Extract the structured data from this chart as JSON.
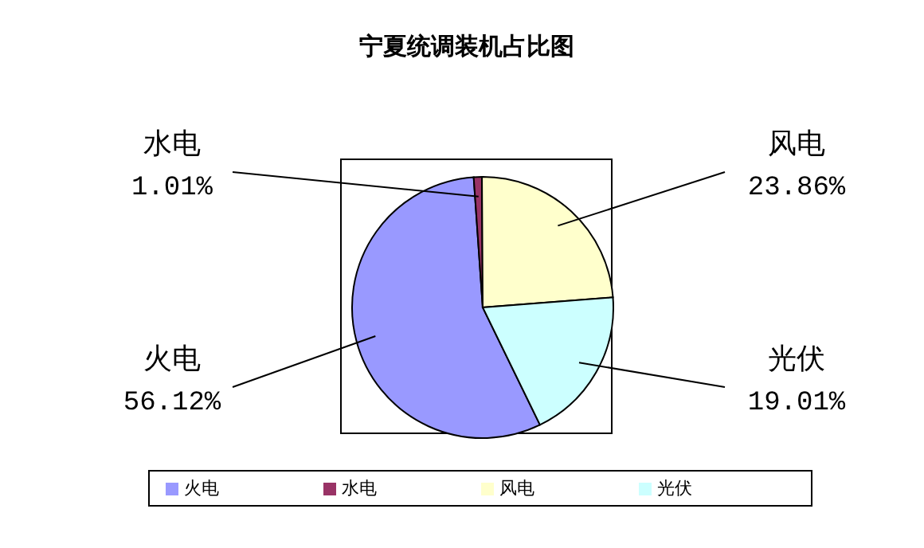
{
  "chart_data": {
    "type": "pie",
    "title": "宁夏统调装机占比图",
    "categories": [
      "火电",
      "水电",
      "风电",
      "光伏"
    ],
    "values": [
      56.12,
      1.01,
      23.86,
      19.01
    ],
    "value_labels": [
      "56.12%",
      "1.01%",
      "23.86%",
      "19.01%"
    ],
    "colors": [
      "#9999ff",
      "#993366",
      "#ffffcc",
      "#ccffff"
    ],
    "legend": "bottom"
  }
}
